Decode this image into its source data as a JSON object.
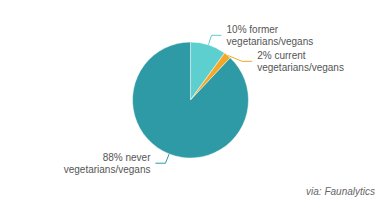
{
  "chart_data": {
    "type": "pie",
    "categories": [
      "10% former\nvegetarians/vegans",
      "2% current\nvegetarians/vegans",
      "88% never\nvegetarians/vegans"
    ],
    "values": [
      10,
      2,
      88
    ],
    "colors": [
      "#5dcfcf",
      "#f5a623",
      "#2e9aa5"
    ],
    "annotation": "via: Faunalytics"
  }
}
